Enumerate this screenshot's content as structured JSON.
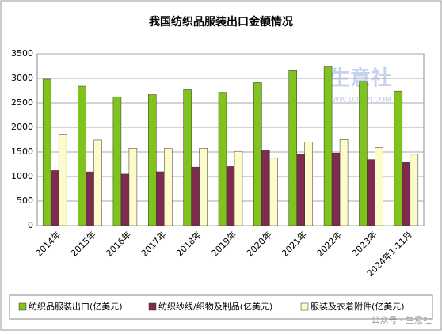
{
  "chart_data": {
    "type": "bar",
    "title": "我国纺织品服装出口金额情况",
    "categories": [
      "2014年",
      "2015年",
      "2016年",
      "2017年",
      "2018年",
      "2019年",
      "2020年",
      "2021年",
      "2022年",
      "2023年",
      "2024年1-11月"
    ],
    "series": [
      {
        "name": "纺织品服装出口(亿美元)",
        "color": "#7fc31c",
        "values": [
          2984,
          2838,
          2626,
          2669,
          2767,
          2716,
          2912,
          3155,
          3233,
          2937,
          2739
        ]
      },
      {
        "name": "纺织纱线/织物及制品(亿美元)",
        "color": "#7d2b4e",
        "values": [
          1122,
          1095,
          1050,
          1097,
          1191,
          1203,
          1538,
          1452,
          1480,
          1345,
          1285
        ]
      },
      {
        "name": "服装及衣着附件(亿美元)",
        "color": "#fdfbc9",
        "values": [
          1862,
          1743,
          1576,
          1572,
          1576,
          1513,
          1374,
          1703,
          1753,
          1592,
          1454
        ]
      }
    ],
    "ylim": [
      0,
      3500
    ],
    "yticks": [
      0,
      500,
      1000,
      1500,
      2000,
      2500,
      3000,
      3500
    ],
    "grid": true,
    "watermarks": [
      "生意社",
      "WWW.100PPI.COM"
    ],
    "credit": "公众号 · 生意社"
  }
}
